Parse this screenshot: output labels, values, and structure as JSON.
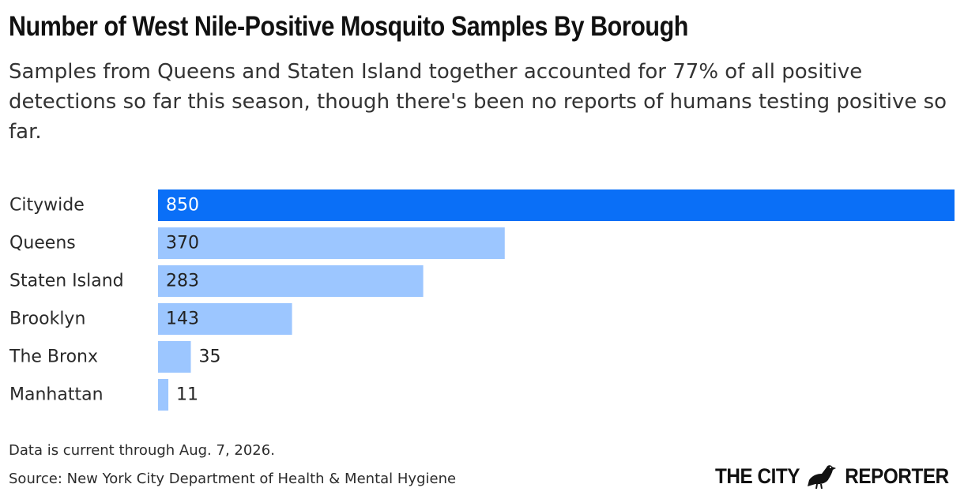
{
  "title": "Number of West Nile-Positive Mosquito Samples By Borough",
  "subtitle": "Samples from Queens and Staten Island together accounted for 77% of all positive detections so far this season, though there's been no reports of humans testing positive so far.",
  "note": "Data is current through Aug. 7, 2026.",
  "source": "Source: New York City Department of Health & Mental Hygiene",
  "logo": {
    "left": "THE CITY",
    "right": "REPORTER",
    "icon": "pigeon-icon"
  },
  "colors": {
    "highlight": "#0a6ff7",
    "bar": "#9cc6ff",
    "label_on_highlight": "#ffffff",
    "label_dark": "#222222"
  },
  "chart_data": {
    "type": "bar",
    "orientation": "horizontal",
    "categories": [
      "Citywide",
      "Queens",
      "Staten Island",
      "Brooklyn",
      "The Bronx",
      "Manhattan"
    ],
    "values": [
      850,
      370,
      283,
      143,
      35,
      11
    ],
    "value_labels": [
      "850",
      "370",
      "283",
      "143",
      "35",
      "11"
    ],
    "highlight_index": 0,
    "xlim": [
      0,
      850
    ],
    "grid": false,
    "legend": "none"
  }
}
